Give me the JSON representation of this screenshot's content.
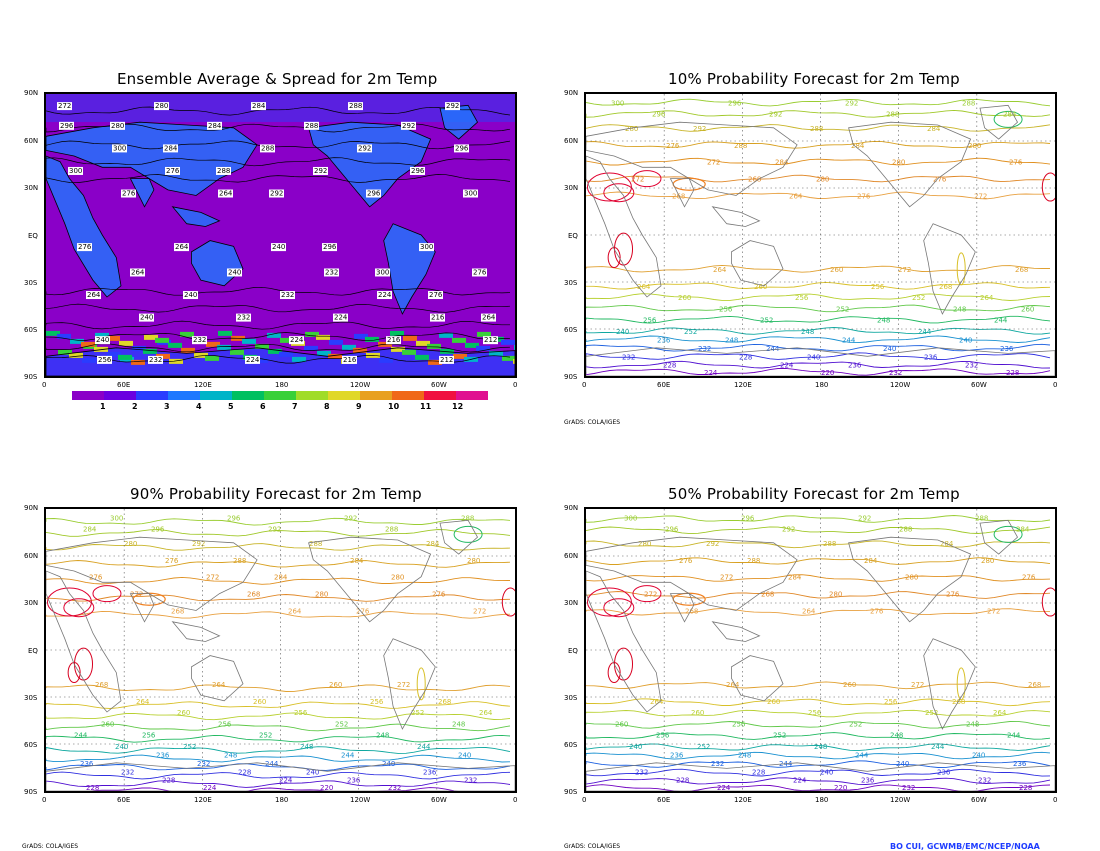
{
  "panels": [
    {
      "id": "p1",
      "title": "Ensemble Average & Spread for 2m Temp"
    },
    {
      "id": "p2",
      "title": "10% Probability Forecast for 2m Temp"
    },
    {
      "id": "p3",
      "title": "90% Probability Forecast for 2m Temp"
    },
    {
      "id": "p4",
      "title": "50% Probability Forecast for 2m Temp"
    }
  ],
  "lat_labels": [
    "90N",
    "60N",
    "30N",
    "EQ",
    "30S",
    "60S",
    "90S"
  ],
  "lon_labels": [
    "0",
    "60E",
    "120E",
    "180",
    "120W",
    "60W",
    "0"
  ],
  "colorbar": {
    "labels": [
      "1",
      "2",
      "3",
      "4",
      "5",
      "6",
      "7",
      "8",
      "9",
      "10",
      "11",
      "12"
    ],
    "colors": [
      "#8a00c8",
      "#6a00e0",
      "#2a3cff",
      "#1e78ff",
      "#00b4c8",
      "#00c060",
      "#38d038",
      "#a0dc28",
      "#e0d828",
      "#e8a020",
      "#f06818",
      "#f01040",
      "#e01090"
    ]
  },
  "credits": {
    "grads": "GrADS: COLA/IGES",
    "author": "BO CUI, GCWMB/EMC/NCEP/NOAA"
  },
  "spread_labels": [
    "272",
    "280",
    "284",
    "288",
    "292",
    "296",
    "300",
    "276",
    "264",
    "240",
    "232",
    "224",
    "216",
    "212",
    "256"
  ],
  "contour_labels": [
    "300",
    "296",
    "292",
    "288",
    "284",
    "280",
    "276",
    "272",
    "268",
    "264",
    "260",
    "256",
    "252",
    "248",
    "244",
    "240",
    "236",
    "232",
    "228",
    "224",
    "220",
    "216",
    "212"
  ]
}
